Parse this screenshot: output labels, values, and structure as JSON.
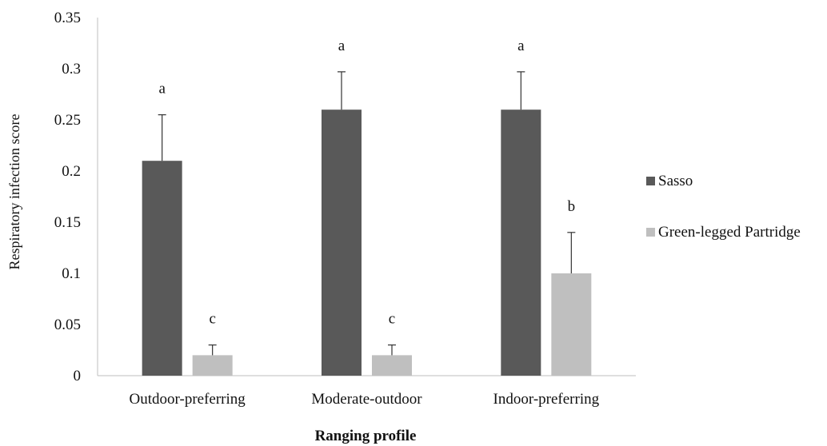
{
  "chart_data": {
    "type": "bar",
    "categories": [
      "Outdoor-preferring",
      "Moderate-outdoor",
      "Indoor-preferring"
    ],
    "series": [
      {
        "name": "Sasso",
        "color": "#595959",
        "values": [
          0.21,
          0.26,
          0.26
        ],
        "errors": [
          0.045,
          0.037,
          0.037
        ],
        "letters": [
          "a",
          "a",
          "a"
        ]
      },
      {
        "name": "Green-legged Partridge",
        "color": "#bfbfbf",
        "values": [
          0.02,
          0.02,
          0.1
        ],
        "errors": [
          0.01,
          0.01,
          0.04
        ],
        "letters": [
          "c",
          "c",
          "b"
        ]
      }
    ],
    "xlabel": "Ranging profile",
    "ylabel": "Respiratory infection score",
    "ylim": [
      0,
      0.35
    ],
    "yticks": [
      "0",
      "0.05",
      "0.1",
      "0.15",
      "0.2",
      "0.25",
      "0.3",
      "0.35"
    ],
    "grid": false,
    "legend_position": "right"
  }
}
